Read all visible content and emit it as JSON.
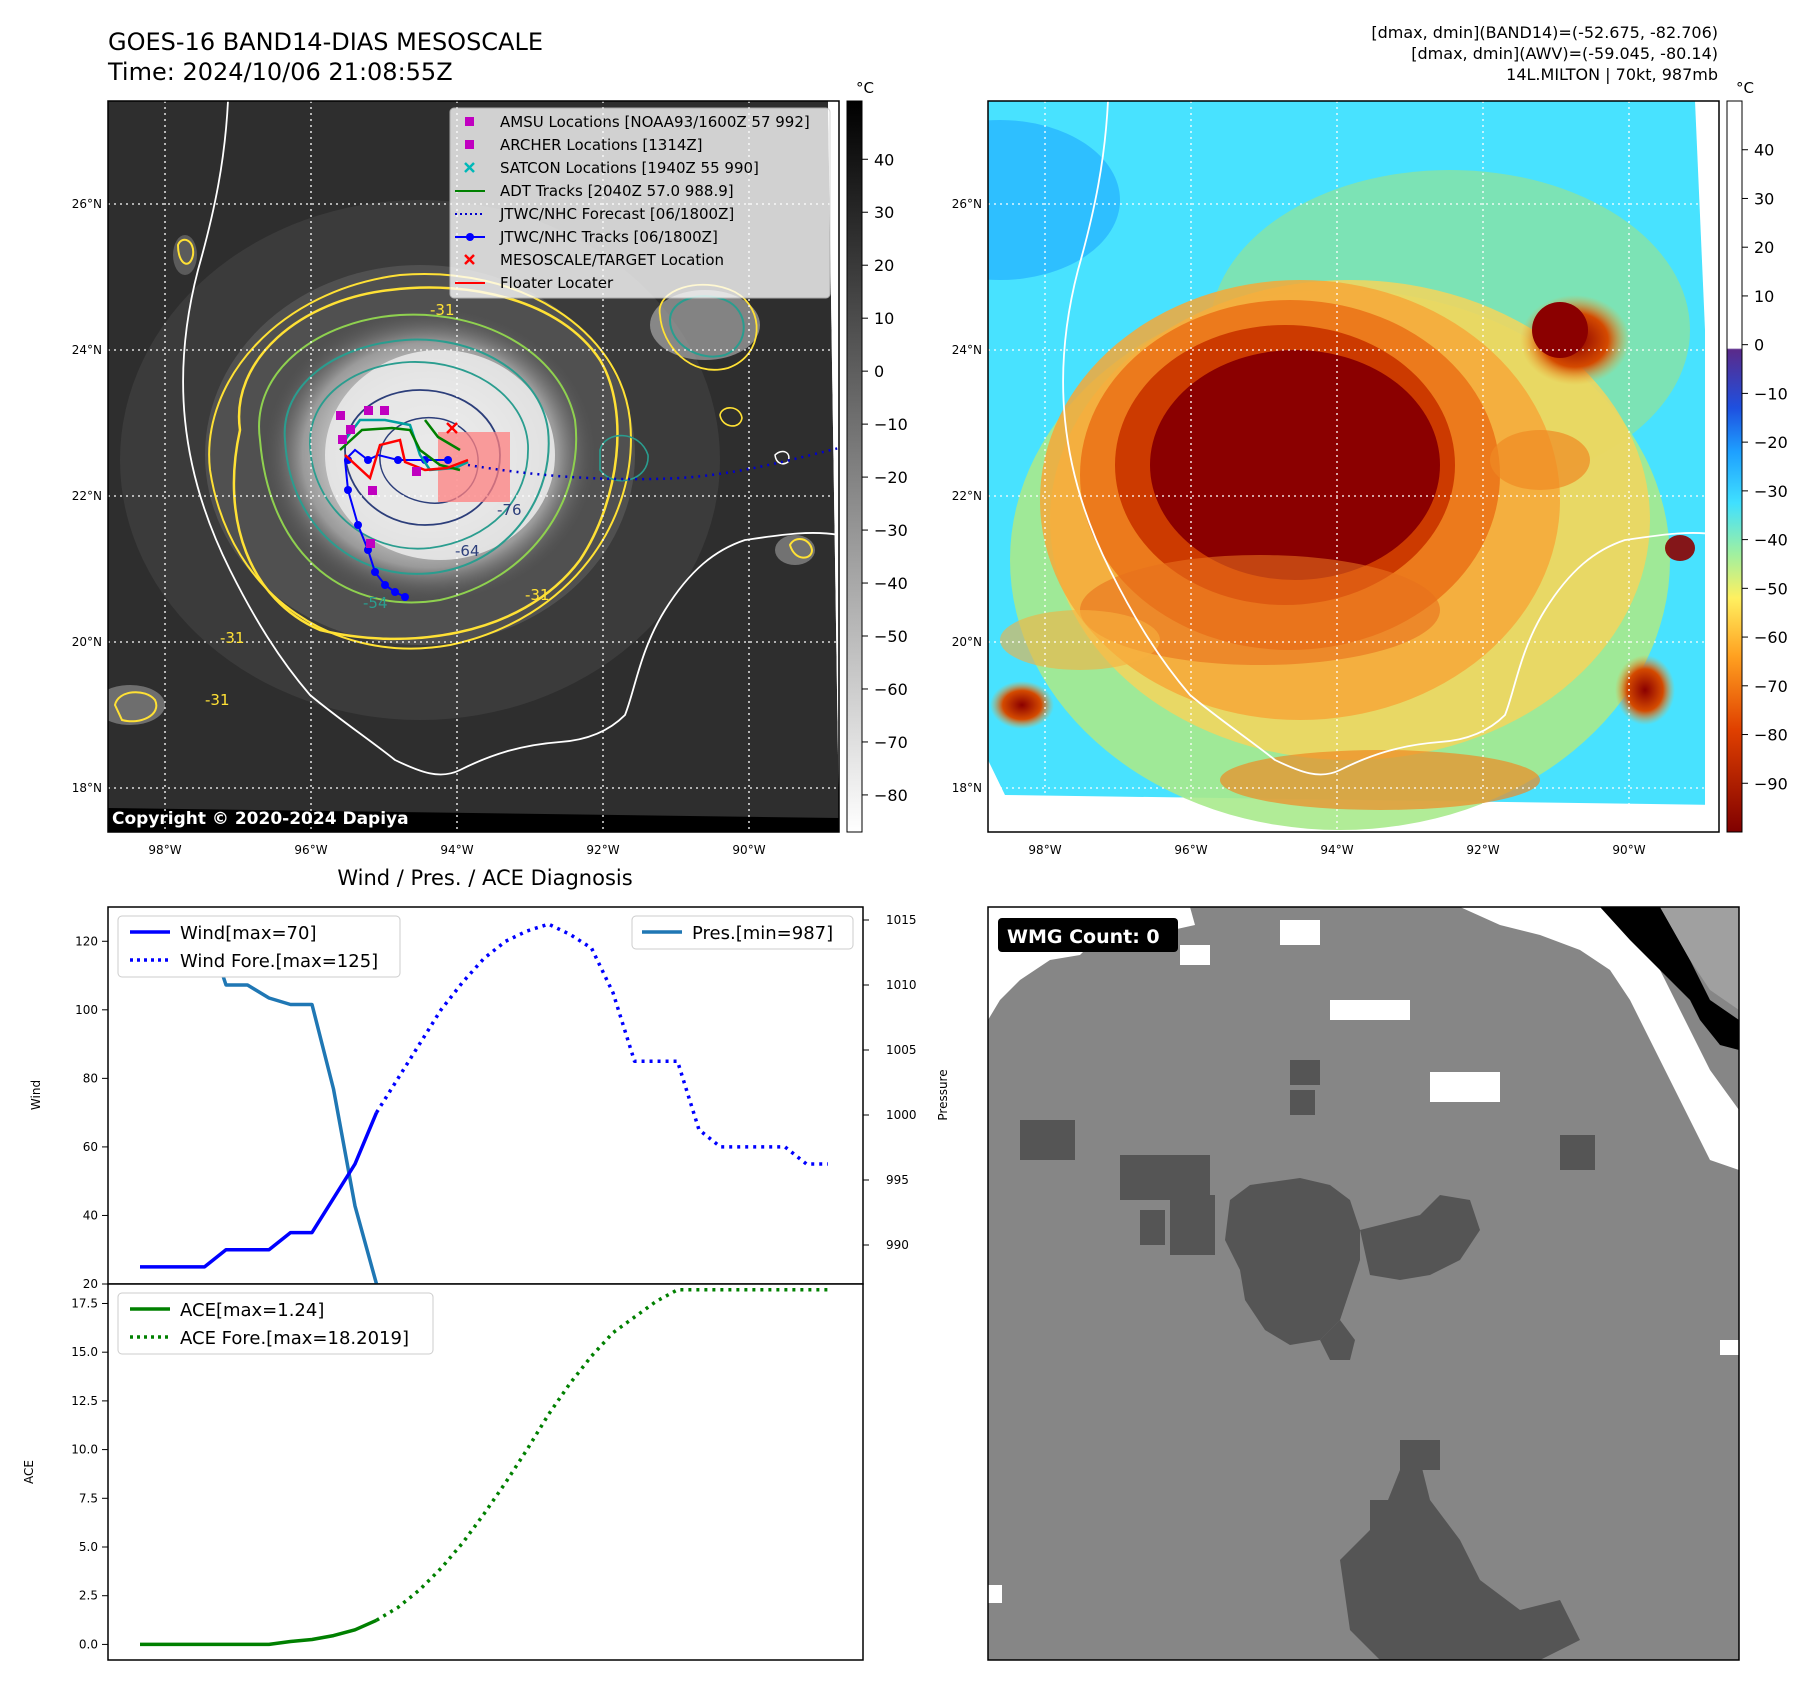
{
  "header": {
    "title_line1": "GOES-16 BAND14-DIAS MESOSCALE",
    "title_line2": "Time: 2024/10/06 21:08:55Z",
    "stats_line1": "[dmax, dmin](BAND14)=(-52.675, -82.706)",
    "stats_line2": "[dmax, dmin](AWV)=(-59.045, -80.14)",
    "stats_line3": "14L.MILTON | 70kt, 987mb"
  },
  "maps": {
    "lat_labels": [
      "26°N",
      "24°N",
      "22°N",
      "20°N",
      "18°N"
    ],
    "lon_labels": [
      "98°W",
      "96°W",
      "94°W",
      "92°W",
      "90°W"
    ],
    "copyright": "Copyright © 2020-2024 Dapiya",
    "colorbar_unit": "°C",
    "left_colorbar_ticks": [
      "40",
      "30",
      "20",
      "10",
      "0",
      "−10",
      "−20",
      "−30",
      "−40",
      "−50",
      "−60",
      "−70",
      "−80"
    ],
    "right_colorbar_ticks": [
      "40",
      "30",
      "20",
      "10",
      "0",
      "−10",
      "−20",
      "−30",
      "−40",
      "−50",
      "−60",
      "−70",
      "−80",
      "−90"
    ],
    "contour_labels": [
      "-31",
      "-54",
      "-64",
      "-76",
      "-31",
      "-31",
      "-31"
    ],
    "legend": [
      {
        "label": "AMSU Locations [NOAA93/1600Z 57 992]",
        "color": "#c000c0",
        "marker": "square"
      },
      {
        "label": "ARCHER Locations [1314Z]",
        "color": "#c000c0",
        "marker": "square"
      },
      {
        "label": "SATCON Locations [1940Z 55 990]",
        "color": "#00b8b8",
        "marker": "x"
      },
      {
        "label": "ADT Tracks [2040Z 57.0 988.9]",
        "color": "#008000",
        "marker": "line"
      },
      {
        "label": "JTWC/NHC Forecast [06/1800Z]",
        "color": "#0000cc",
        "marker": "dotted"
      },
      {
        "label": "JTWC/NHC Tracks [06/1800Z]",
        "color": "#0000ff",
        "marker": "line-dot"
      },
      {
        "label": "MESOSCALE/TARGET Location",
        "color": "#ff0000",
        "marker": "x"
      },
      {
        "label": "Floater Locater",
        "color": "#ff0000",
        "marker": "line"
      }
    ]
  },
  "diag": {
    "title": "Wind / Pres. / ACE Diagnosis",
    "wind_axis_label": "Wind",
    "pressure_axis_label": "Pressure",
    "ace_axis_label": "ACE",
    "legend_wind": "Wind[max=70]",
    "legend_wind_fore": "Wind Fore.[max=125]",
    "legend_pres": "Pres.[min=987]",
    "legend_ace": "ACE[max=1.24]",
    "legend_ace_fore": "ACE Fore.[max=18.2019]",
    "wind_ticks": [
      "120",
      "100",
      "80",
      "60",
      "40",
      "20"
    ],
    "pressure_ticks": [
      "1015",
      "1010",
      "1005",
      "1000",
      "995",
      "990"
    ],
    "ace_ticks": [
      "17.5",
      "15.0",
      "12.5",
      "10.0",
      "7.5",
      "5.0",
      "2.5",
      "0.0"
    ]
  },
  "wmg": {
    "label": "WMG Count: 0"
  },
  "chart_data": [
    {
      "type": "line",
      "ylabel": "Wind",
      "ylim": [
        20,
        130
      ],
      "series": [
        {
          "name": "Wind[max=70]",
          "x": [
            0,
            1,
            2,
            3,
            4,
            5,
            6,
            7,
            8,
            9,
            10,
            11
          ],
          "values": [
            25,
            25,
            25,
            25,
            30,
            30,
            30,
            35,
            35,
            45,
            55,
            70
          ]
        },
        {
          "name": "Wind Fore.[max=125]",
          "x": [
            11,
            12,
            13,
            14,
            15,
            16,
            17,
            18,
            19,
            20,
            21,
            22,
            23,
            24,
            25,
            26,
            27,
            28,
            29,
            30,
            31,
            32
          ],
          "values": [
            70,
            80,
            90,
            100,
            108,
            115,
            120,
            123,
            125,
            122,
            118,
            105,
            85,
            85,
            85,
            65,
            60,
            60,
            60,
            60,
            55,
            55
          ]
        }
      ]
    },
    {
      "type": "line",
      "ylabel": "Pressure",
      "ylim": [
        987,
        1016
      ],
      "series": [
        {
          "name": "Pres.[min=987]",
          "x": [
            0,
            1,
            2,
            3,
            4,
            5,
            6,
            7,
            8,
            9,
            10,
            11
          ],
          "values": [
            1015,
            1015,
            1015,
            1015,
            1010,
            1010,
            1009,
            1008.5,
            1008.5,
            1002,
            993,
            987
          ]
        }
      ]
    },
    {
      "type": "line",
      "ylabel": "ACE",
      "ylim": [
        -0.8,
        18.5
      ],
      "series": [
        {
          "name": "ACE[max=1.24]",
          "x": [
            0,
            1,
            2,
            3,
            4,
            5,
            6,
            7,
            8,
            9,
            10,
            11
          ],
          "values": [
            0,
            0,
            0,
            0,
            0,
            0,
            0,
            0.15,
            0.25,
            0.45,
            0.75,
            1.24
          ]
        },
        {
          "name": "ACE Fore.[max=18.2019]",
          "x": [
            11,
            12,
            13,
            14,
            15,
            16,
            17,
            18,
            19,
            20,
            21,
            22,
            23,
            24,
            25,
            26,
            27,
            28,
            29,
            30,
            31,
            32
          ],
          "values": [
            1.24,
            1.9,
            2.8,
            3.9,
            5.2,
            6.7,
            8.3,
            10,
            11.8,
            13.4,
            14.8,
            16,
            16.8,
            17.6,
            18.2,
            18.2,
            18.2,
            18.2,
            18.2,
            18.2,
            18.2,
            18.2
          ]
        }
      ]
    }
  ]
}
